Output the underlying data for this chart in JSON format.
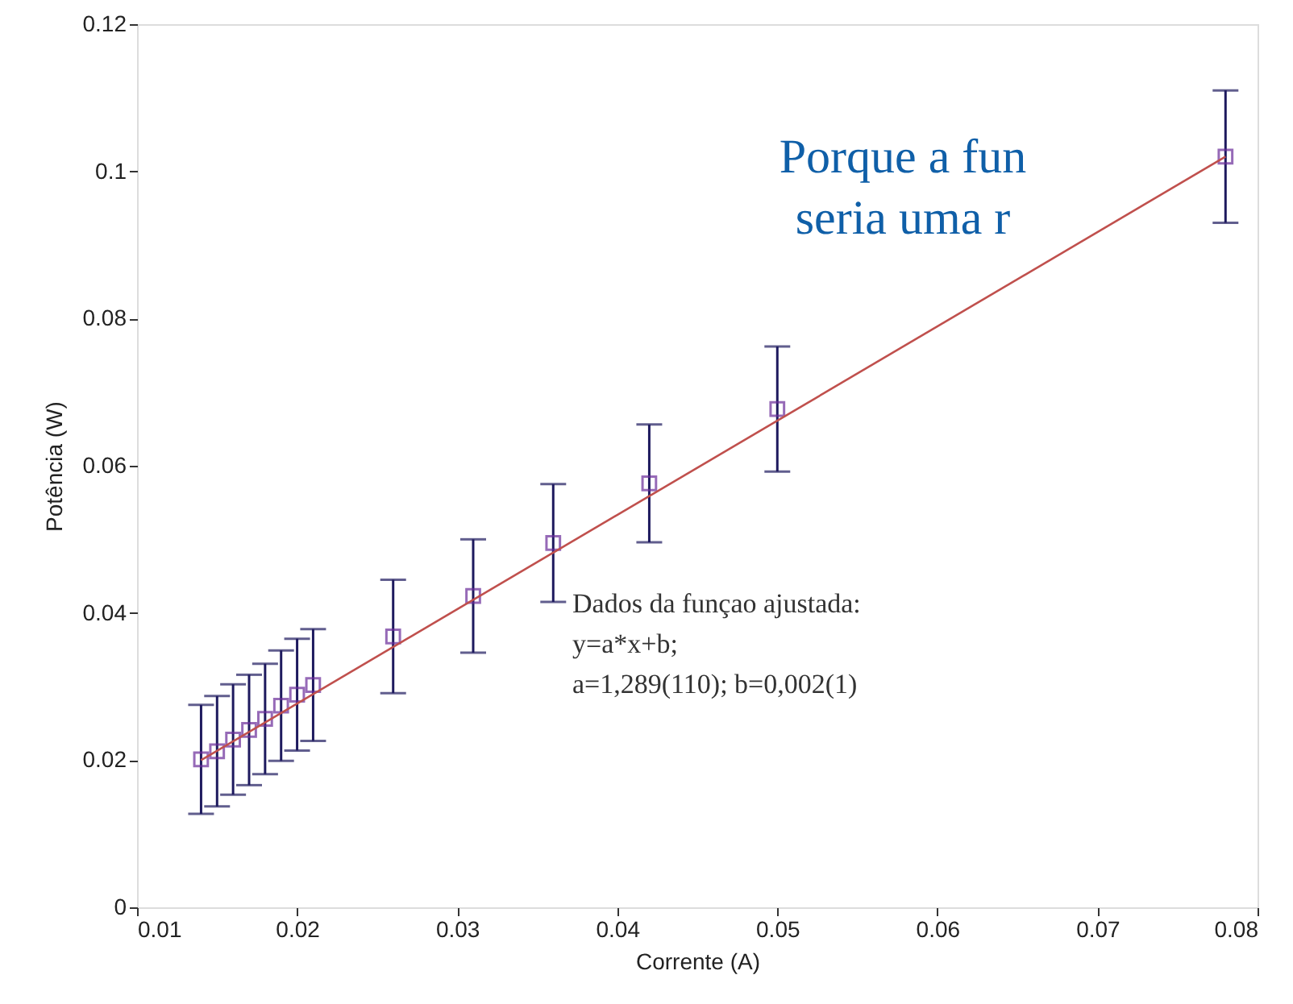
{
  "chart_data": {
    "type": "scatter",
    "xlabel": "Corrente (A)",
    "ylabel": "Potência (W)",
    "xlim": [
      0.01,
      0.08
    ],
    "xticks": [
      0.01,
      0.02,
      0.03,
      0.04,
      0.05,
      0.06,
      0.07,
      0.08
    ],
    "ylim": [
      0,
      0.12
    ],
    "yticks": [
      0,
      0.02,
      0.04,
      0.06,
      0.08,
      0.1,
      0.12
    ],
    "grid": false,
    "series": [
      {
        "type": "scatter",
        "color": "#6a2c9a",
        "marker": "square",
        "x": [
          0.014,
          0.015,
          0.016,
          0.017,
          0.018,
          0.019,
          0.02,
          0.021,
          0.026,
          0.031,
          0.036,
          0.042,
          0.05,
          0.069,
          0.078
        ],
        "values": [
          0.0201,
          0.0212,
          0.0228,
          0.0241,
          0.0256,
          0.0274,
          0.0289,
          0.0302,
          0.0368,
          0.0423,
          0.0495,
          0.0576,
          0.0677,
          null,
          0.102
        ],
        "errors": [
          0.0074,
          0.0075,
          0.0075,
          0.0075,
          0.0075,
          0.0075,
          0.0076,
          0.0076,
          0.0077,
          0.0077,
          0.008,
          0.008,
          0.0085,
          null,
          0.009
        ]
      },
      {
        "type": "line",
        "color": "#c0504d",
        "line_style": "solid",
        "marker": "none",
        "x": [
          0.014,
          0.078
        ],
        "values": [
          0.02,
          0.102
        ]
      }
    ],
    "annotations": [
      "Dados da funçao ajustada:",
      "y=a*x+b;",
      "a=1,289(110); b=0,002(1)",
      "Porque a fun",
      "seria uma r"
    ]
  }
}
